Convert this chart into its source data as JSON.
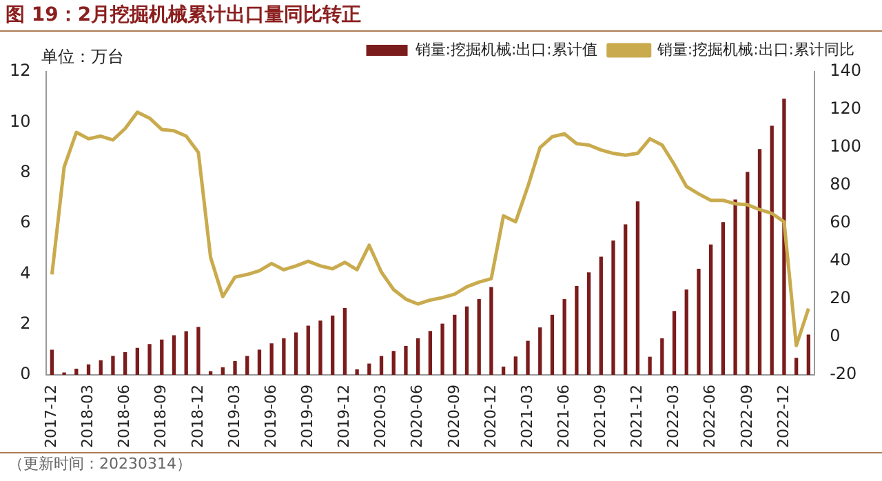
{
  "chart_data": {
    "type": "bar",
    "title": "图 19：2月挖掘机械累计出口量同比转正",
    "ylabel": "单位：万台",
    "categories": [
      "2017-12",
      null,
      null,
      "2018-03",
      null,
      null,
      "2018-06",
      null,
      null,
      "2018-09",
      null,
      null,
      "2018-12",
      null,
      null,
      "2019-03",
      null,
      null,
      "2019-06",
      null,
      null,
      "2019-09",
      null,
      null,
      "2019-12",
      null,
      null,
      "2020-03",
      null,
      null,
      "2020-06",
      null,
      null,
      "2020-09",
      null,
      null,
      "2020-12",
      null,
      null,
      "2021-03",
      null,
      null,
      "2021-06",
      null,
      null,
      "2021-09",
      null,
      null,
      "2021-12",
      null,
      null,
      "2022-03",
      null,
      null,
      "2022-06",
      null,
      null,
      "2022-09",
      null,
      null,
      "2022-12",
      null,
      null
    ],
    "series": [
      {
        "name": "销量:挖掘机械:出口:累计值",
        "color": "#7b1c1c",
        "values": [
          1.0,
          0.1,
          0.25,
          0.42,
          0.58,
          0.75,
          0.9,
          1.07,
          1.22,
          1.4,
          1.57,
          1.73,
          1.9,
          0.15,
          0.3,
          0.55,
          0.75,
          1.0,
          1.25,
          1.45,
          1.68,
          1.95,
          2.15,
          2.35,
          2.65,
          0.22,
          0.45,
          0.75,
          0.95,
          1.15,
          1.45,
          1.74,
          2.03,
          2.38,
          2.71,
          3.0,
          3.48,
          0.33,
          0.73,
          1.35,
          1.88,
          2.38,
          3.0,
          3.52,
          4.06,
          4.68,
          5.32,
          5.96,
          6.87,
          0.72,
          1.45,
          2.53,
          3.38,
          4.2,
          5.16,
          6.05,
          6.94,
          8.03,
          8.94,
          9.86,
          10.93,
          0.68,
          1.6
        ]
      },
      {
        "name": "销量:挖掘机械:出口:累计同比",
        "type": "line",
        "axis": "y2",
        "color": "#c9ab4e",
        "values": [
          33,
          89.7,
          108,
          104.6,
          106,
          104,
          110,
          118.6,
          115.5,
          109.5,
          108.8,
          106,
          97.4,
          42,
          21.3,
          31.6,
          33,
          35,
          38.8,
          35.5,
          37.5,
          40,
          37.5,
          36,
          39.4,
          35.5,
          48.4,
          34.2,
          25,
          20,
          17.4,
          19.5,
          20.8,
          22.6,
          26.5,
          29,
          30.8,
          63.9,
          60.8,
          79.4,
          100,
          105.7,
          107.2,
          102,
          101.3,
          98.7,
          96.9,
          95.9,
          96.9,
          104.6,
          101.3,
          91,
          79.4,
          75.5,
          72.1,
          72.1,
          70.3,
          69.8,
          67.2,
          65.2,
          60.8,
          -4.5,
          15
        ]
      }
    ],
    "ylim": [
      0,
      12
    ],
    "yticks": [
      0,
      2,
      4,
      6,
      8,
      10,
      12
    ],
    "y2lim": [
      -20,
      140
    ],
    "y2ticks": [
      -20,
      0,
      20,
      40,
      60,
      80,
      100,
      120,
      140
    ],
    "grid": false,
    "legend": "top",
    "marker": "none",
    "line_style": "solid",
    "annotations": [
      "（更新时间：20230314）"
    ]
  }
}
